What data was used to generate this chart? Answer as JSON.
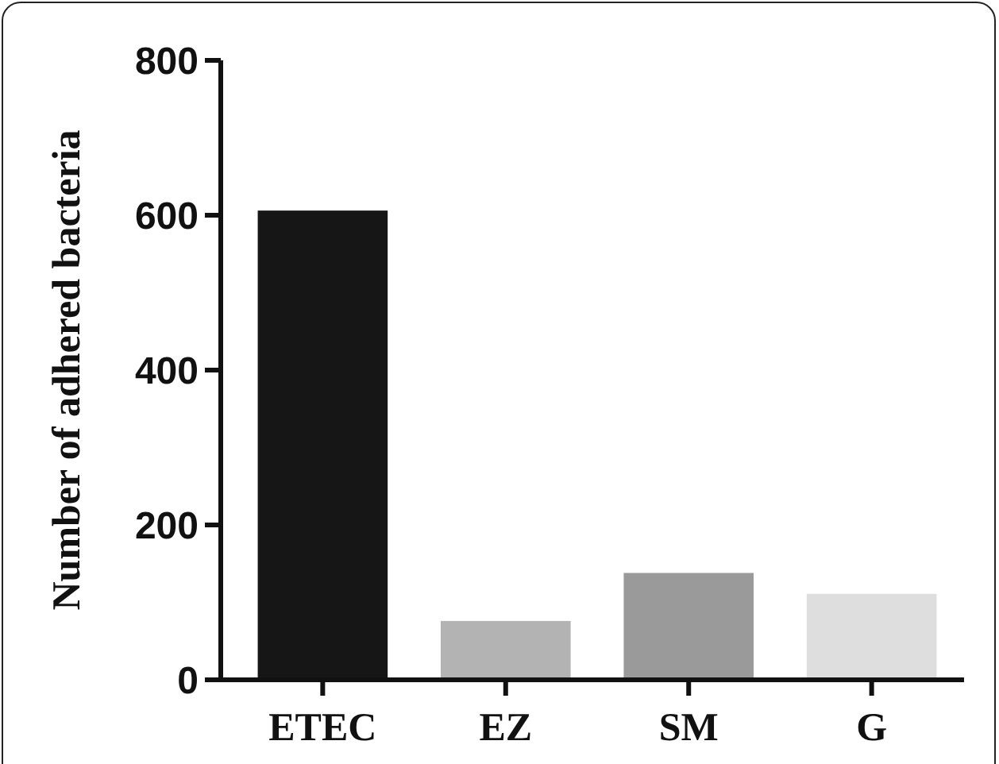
{
  "chart_data": {
    "type": "bar",
    "ylabel": "Number of adhered bacteria",
    "categories": [
      "ETEC",
      "EZ",
      "SM",
      "G"
    ],
    "values": [
      606,
      76,
      138,
      111
    ],
    "colors": [
      "#161616",
      "#b3b3b3",
      "#9a9a9a",
      "#dedede"
    ],
    "ylim": [
      0,
      800
    ],
    "yticks": [
      0,
      200,
      400,
      600,
      800
    ]
  }
}
